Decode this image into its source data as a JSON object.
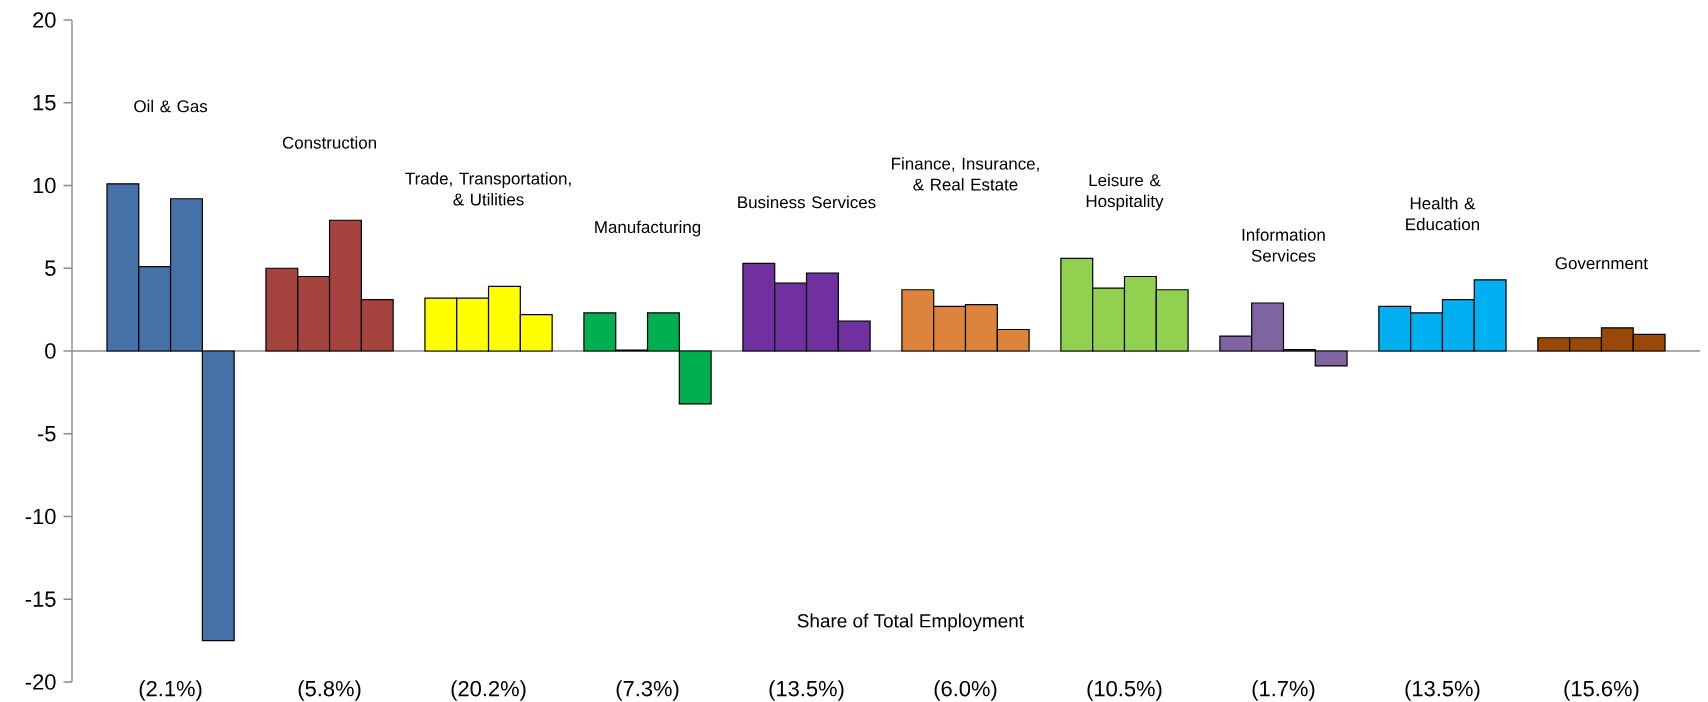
{
  "chart_data": {
    "type": "bar",
    "xlabel": "Share of Total Employment",
    "categories": [
      "(2.1%)",
      "(5.8%)",
      "(20.2%)",
      "(7.3%)",
      "(13.5%)",
      "(6.0%)",
      "(10.5%)",
      "(1.7%)",
      "(13.5%)",
      "(15.6%)"
    ],
    "annotations": [
      "Oil & Gas",
      "Construction",
      "Trade, Transportation, & Utilities",
      "Manufacturing",
      "Business Services",
      "Finance, Insurance, & Real Estate",
      "Leisure & Hospitality",
      "Information Services",
      "Health & Education",
      "Government"
    ],
    "series": [
      {
        "colors": [
          "#4472a8",
          "#a5443f",
          "#ffff00",
          "#00b050",
          "#7030a0",
          "#dd843c",
          "#92d050",
          "#8064a2",
          "#00b0f0",
          "#984807"
        ],
        "values": [
          10.1,
          5.0,
          3.2,
          2.3,
          5.3,
          3.7,
          5.6,
          0.9,
          2.7,
          0.8
        ]
      },
      {
        "colors": [
          "#4472a8",
          "#a5443f",
          "#ffff00",
          "#00b050",
          "#7030a0",
          "#dd843c",
          "#92d050",
          "#8064a2",
          "#00b0f0",
          "#984807"
        ],
        "values": [
          5.1,
          4.5,
          3.2,
          0.05,
          4.1,
          2.7,
          3.8,
          2.9,
          2.3,
          0.8
        ]
      },
      {
        "colors": [
          "#4472a8",
          "#a5443f",
          "#ffff00",
          "#00b050",
          "#7030a0",
          "#dd843c",
          "#92d050",
          "#8064a2",
          "#00b0f0",
          "#984807"
        ],
        "values": [
          9.2,
          7.9,
          3.9,
          2.3,
          4.7,
          2.8,
          4.5,
          0.08,
          3.1,
          1.4
        ]
      },
      {
        "colors": [
          "#4472a8",
          "#a5443f",
          "#ffff00",
          "#00b050",
          "#7030a0",
          "#dd843c",
          "#92d050",
          "#8064a2",
          "#00b0f0",
          "#984807"
        ],
        "values": [
          -17.5,
          3.1,
          2.2,
          -3.2,
          1.8,
          1.3,
          3.7,
          -0.9,
          4.3,
          1.0
        ]
      }
    ],
    "ylim": [
      -20,
      20
    ],
    "yticks": [
      -20,
      -15,
      -10,
      -5,
      0,
      5,
      10,
      15,
      20
    ]
  }
}
